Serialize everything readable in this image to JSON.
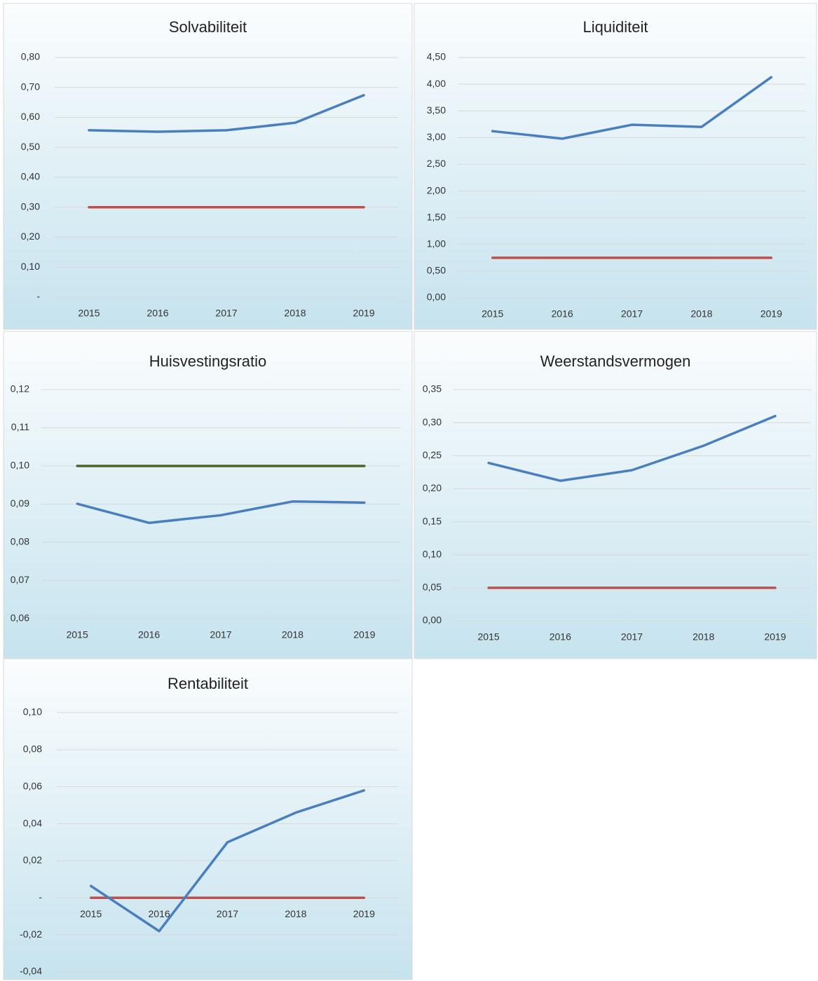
{
  "chart_data": [
    {
      "type": "line",
      "title": "Solvabiliteit",
      "categories": [
        "2015",
        "2016",
        "2017",
        "2018",
        "2019"
      ],
      "series": [
        {
          "color": "#4a7fbf",
          "values": [
            0.557,
            0.552,
            0.557,
            0.582,
            0.674
          ]
        },
        {
          "color": "#c0504d",
          "values": [
            0.3,
            0.3,
            0.3,
            0.3,
            0.3
          ]
        }
      ],
      "ylim": [
        0,
        0.8
      ],
      "yticks": [
        {
          "value": 0,
          "label": "-"
        },
        {
          "value": 0.1,
          "label": "0,10"
        },
        {
          "value": 0.2,
          "label": "0,20"
        },
        {
          "value": 0.3,
          "label": "0,30"
        },
        {
          "value": 0.4,
          "label": "0,40"
        },
        {
          "value": 0.5,
          "label": "0,50"
        },
        {
          "value": 0.6,
          "label": "0,60"
        },
        {
          "value": 0.7,
          "label": "0,70"
        },
        {
          "value": 0.8,
          "label": "0,80"
        }
      ],
      "grid": true
    },
    {
      "type": "line",
      "title": "Liquiditeit",
      "categories": [
        "2015",
        "2016",
        "2017",
        "2018",
        "2019"
      ],
      "series": [
        {
          "color": "#4a7fbf",
          "values": [
            3.12,
            2.98,
            3.24,
            3.2,
            4.13
          ]
        },
        {
          "color": "#c0504d",
          "values": [
            0.75,
            0.75,
            0.75,
            0.75,
            0.75
          ]
        }
      ],
      "ylim": [
        0,
        4.5
      ],
      "yticks": [
        {
          "value": 0,
          "label": "0,00"
        },
        {
          "value": 0.5,
          "label": "0,50"
        },
        {
          "value": 1,
          "label": "1,00"
        },
        {
          "value": 1.5,
          "label": "1,50"
        },
        {
          "value": 2,
          "label": "2,00"
        },
        {
          "value": 2.5,
          "label": "2,50"
        },
        {
          "value": 3,
          "label": "3,00"
        },
        {
          "value": 3.5,
          "label": "3,50"
        },
        {
          "value": 4,
          "label": "4,00"
        },
        {
          "value": 4.5,
          "label": "4,50"
        }
      ],
      "grid": true
    },
    {
      "type": "line",
      "title": "Huisvestingsratio",
      "categories": [
        "2015",
        "2016",
        "2017",
        "2018",
        "2019"
      ],
      "series": [
        {
          "color": "#4f6228",
          "values": [
            0.1,
            0.1,
            0.1,
            0.1,
            0.1
          ]
        },
        {
          "color": "#4a7fbf",
          "values": [
            0.0901,
            0.0851,
            0.0871,
            0.0907,
            0.0904
          ]
        }
      ],
      "ylim": [
        0.06,
        0.12
      ],
      "yticks": [
        {
          "value": 0.06,
          "label": "0,06"
        },
        {
          "value": 0.07,
          "label": "0,07"
        },
        {
          "value": 0.08,
          "label": "0,08"
        },
        {
          "value": 0.09,
          "label": "0,09"
        },
        {
          "value": 0.1,
          "label": "0,10"
        },
        {
          "value": 0.11,
          "label": "0,11"
        },
        {
          "value": 0.12,
          "label": "0,12"
        }
      ],
      "grid": true
    },
    {
      "type": "line",
      "title": "Weerstandsvermogen",
      "categories": [
        "2015",
        "2016",
        "2017",
        "2018",
        "2019"
      ],
      "series": [
        {
          "color": "#4a7fbf",
          "values": [
            0.239,
            0.212,
            0.228,
            0.265,
            0.31
          ]
        },
        {
          "color": "#c0504d",
          "values": [
            0.05,
            0.05,
            0.05,
            0.05,
            0.05
          ]
        }
      ],
      "ylim": [
        0,
        0.35
      ],
      "yticks": [
        {
          "value": 0,
          "label": "0,00"
        },
        {
          "value": 0.05,
          "label": "0,05"
        },
        {
          "value": 0.1,
          "label": "0,10"
        },
        {
          "value": 0.15,
          "label": "0,15"
        },
        {
          "value": 0.2,
          "label": "0,20"
        },
        {
          "value": 0.25,
          "label": "0,25"
        },
        {
          "value": 0.3,
          "label": "0,30"
        },
        {
          "value": 0.35,
          "label": "0,35"
        }
      ],
      "grid": true
    },
    {
      "type": "line",
      "title": "Rentabiliteit",
      "categories": [
        "2015",
        "2016",
        "2017",
        "2018",
        "2019"
      ],
      "series": [
        {
          "color": "#c0504d",
          "values": [
            0,
            0,
            0,
            0,
            0
          ]
        },
        {
          "color": "#4a7fbf",
          "values": [
            0.0064,
            -0.018,
            0.03,
            0.046,
            0.058
          ]
        }
      ],
      "ylim": [
        -0.04,
        0.1
      ],
      "yticks": [
        {
          "value": -0.04,
          "label": "-0,04"
        },
        {
          "value": -0.02,
          "label": "-0,02"
        },
        {
          "value": 0,
          "label": "-"
        },
        {
          "value": 0.02,
          "label": "0,02"
        },
        {
          "value": 0.04,
          "label": "0,04"
        },
        {
          "value": 0.06,
          "label": "0,06"
        },
        {
          "value": 0.08,
          "label": "0,08"
        },
        {
          "value": 0.1,
          "label": "0,10"
        }
      ],
      "grid": true
    }
  ]
}
